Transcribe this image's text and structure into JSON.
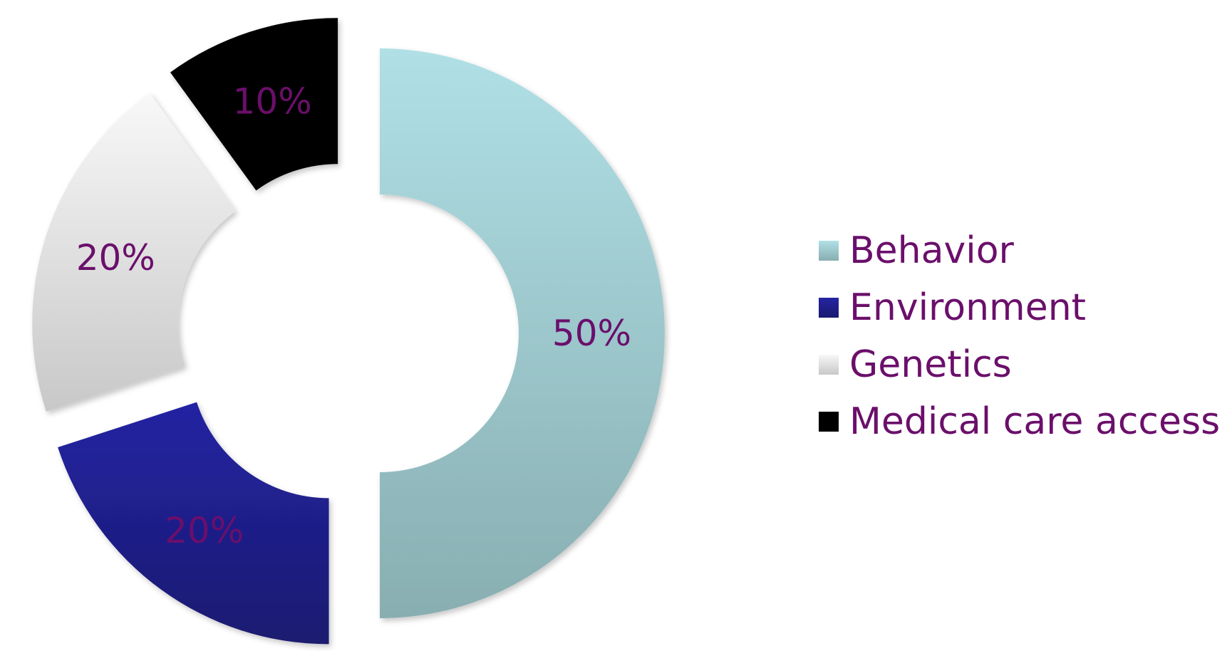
{
  "chart_data": {
    "type": "pie",
    "style": "exploded doughnut",
    "categories": [
      "Behavior",
      "Environment",
      "Genetics",
      "Medical care access"
    ],
    "values": [
      50,
      20,
      20,
      10
    ],
    "data_labels": [
      "50%",
      "20%",
      "20%",
      "10%"
    ],
    "colors": {
      "Behavior": [
        "#b0e0e6",
        "#88aeb1"
      ],
      "Environment": [
        "#2424a3",
        "#1a1a70"
      ],
      "Genetics": [
        "#f8f8f8",
        "#c8c8c8"
      ],
      "Medical care access": [
        "#000000",
        "#000000"
      ]
    },
    "label_color": "#6b0f6b",
    "legend_position": "right"
  }
}
